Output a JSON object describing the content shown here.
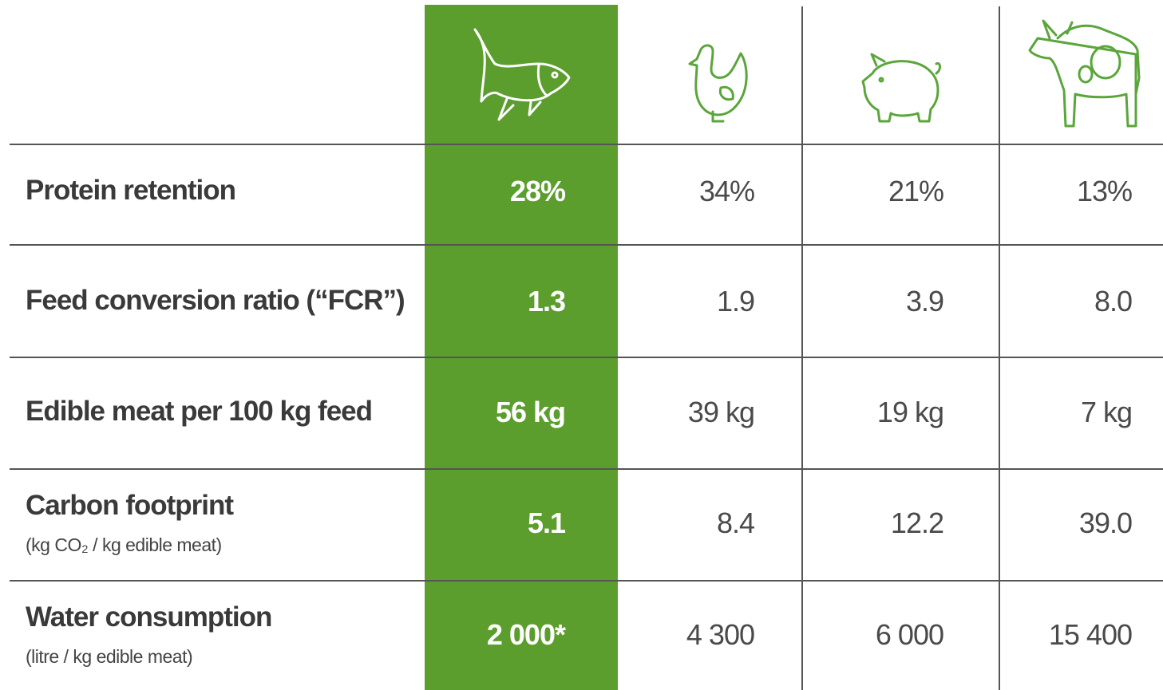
{
  "table": {
    "rows": [
      {
        "label": "Protein retention",
        "values": [
          "28%",
          "34%",
          "21%",
          "13%"
        ]
      },
      {
        "label": "Feed conversion ratio (“FCR”)",
        "values": [
          "1.3",
          "1.9",
          "3.9",
          "8.0"
        ]
      },
      {
        "label": "Edible meat per 100 kg feed",
        "values": [
          "56 kg",
          "39 kg",
          "19 kg",
          "7 kg"
        ]
      },
      {
        "label": "Carbon footprint",
        "note": "(kg CO₂ / kg edible meat)",
        "values": [
          "5.1",
          "8.4",
          "12.2",
          "39.0"
        ]
      },
      {
        "label": "Water consumption",
        "note": "(litre / kg edible meat)",
        "values": [
          "2 000*",
          "4 300",
          "6 000",
          "15 400"
        ]
      }
    ]
  }
}
